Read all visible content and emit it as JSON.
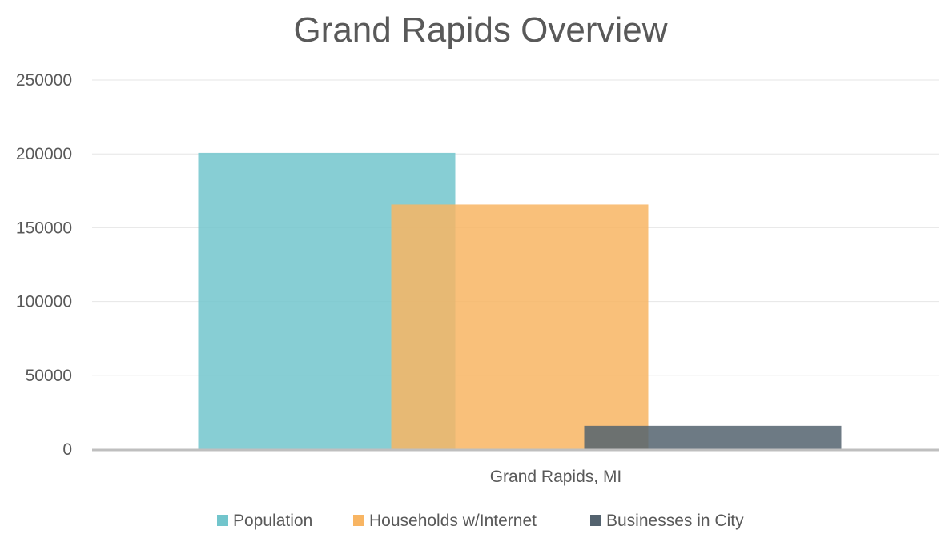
{
  "chart_data": {
    "type": "bar",
    "title": "Grand Rapids Overview",
    "xlabel": "",
    "ylabel": "",
    "categories": [
      "Grand Rapids, MI"
    ],
    "series": [
      {
        "name": "Population",
        "values": [
          200700
        ],
        "color": "#72C5CC"
      },
      {
        "name": "Households w/Internet",
        "values": [
          165700
        ],
        "color": "#F8B563"
      },
      {
        "name": "Businesses in City",
        "values": [
          15800
        ],
        "color": "#54636F"
      }
    ],
    "ylim": [
      0,
      250000
    ],
    "yticks": [
      "0",
      "50000",
      "100000",
      "150000",
      "200000",
      "250000"
    ],
    "grid": true,
    "legend": "bottom",
    "bar_opacity": 0.85
  }
}
